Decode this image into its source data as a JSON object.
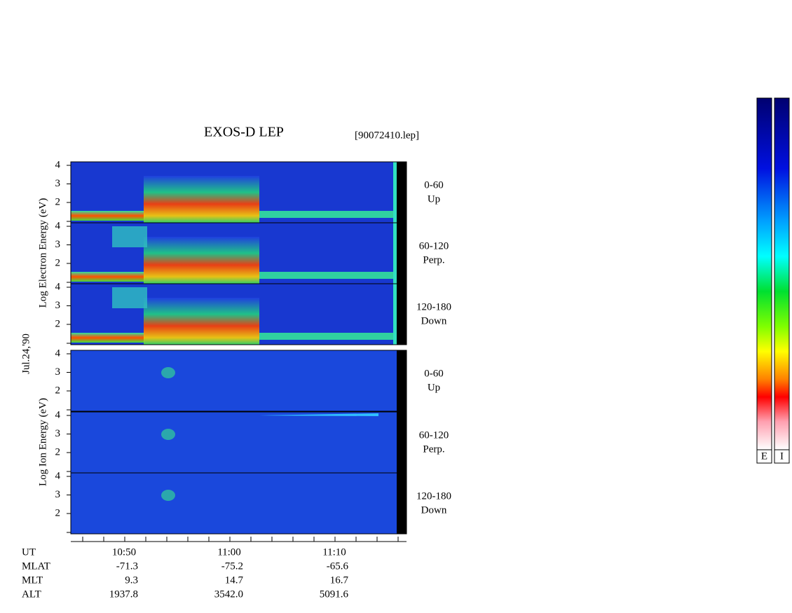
{
  "title": "EXOS-D LEP",
  "file": "[90072410.lep]",
  "date": "Jul.24,'90",
  "electron": {
    "axis_label": "Log Electron Energy (eV)",
    "panels": [
      {
        "ticks": [
          "4",
          "3",
          "2"
        ],
        "angle": "0-60",
        "direction": "Up"
      },
      {
        "ticks": [
          "4",
          "3",
          "2"
        ],
        "angle": "60-120",
        "direction": "Perp."
      },
      {
        "ticks": [
          "4",
          "3",
          "2"
        ],
        "angle": "120-180",
        "direction": "Down"
      }
    ]
  },
  "ion": {
    "axis_label": "Log Ion Energy (eV)",
    "panels": [
      {
        "ticks": [
          "4",
          "3",
          "2"
        ],
        "angle": "0-60",
        "direction": "Up"
      },
      {
        "ticks": [
          "4",
          "3",
          "2"
        ],
        "angle": "60-120",
        "direction": "Perp."
      },
      {
        "ticks": [
          "4",
          "3",
          "2"
        ],
        "angle": "120-180",
        "direction": "Down"
      }
    ]
  },
  "orbit": {
    "rows": [
      {
        "name": "UT",
        "values": [
          "10:50",
          "11:00",
          "11:10"
        ]
      },
      {
        "name": "MLAT",
        "values": [
          "-71.3",
          "-75.2",
          "-65.6"
        ]
      },
      {
        "name": "MLT",
        "values": [
          "9.3",
          "14.7",
          "16.7"
        ]
      },
      {
        "name": "ALT",
        "values": [
          "1937.8",
          "3542.0",
          "5091.6"
        ]
      }
    ]
  },
  "colorbars": [
    "E",
    "I"
  ]
}
